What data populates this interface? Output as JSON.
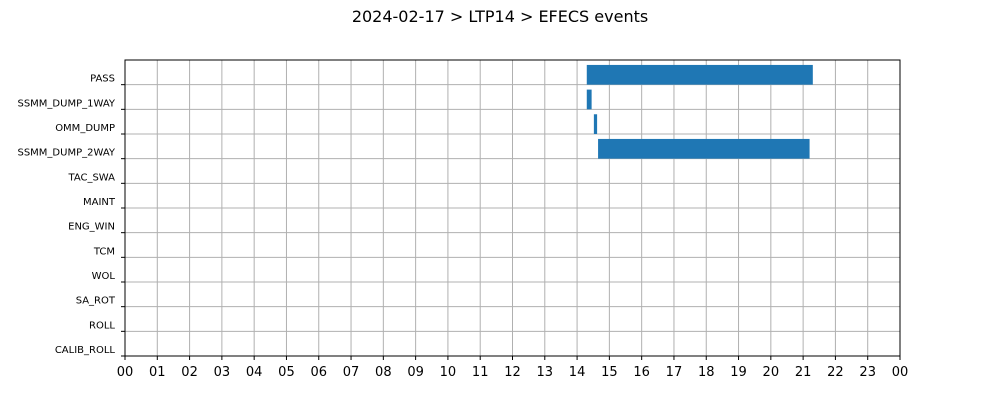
{
  "chart_data": {
    "type": "bar",
    "orientation": "horizontal-timeline",
    "title": "2024-02-17 > LTP14 > EFECS events",
    "categories": [
      "PASS",
      "SSMM_DUMP_1WAY",
      "OMM_DUMP",
      "SSMM_DUMP_2WAY",
      "TAC_SWA",
      "MAINT",
      "ENG_WIN",
      "TCM",
      "WOL",
      "SA_ROT",
      "ROLL",
      "CALIB_ROLL"
    ],
    "xlim": [
      0,
      24
    ],
    "x_ticks": [
      0,
      1,
      2,
      3,
      4,
      5,
      6,
      7,
      8,
      9,
      10,
      11,
      12,
      13,
      14,
      15,
      16,
      17,
      18,
      19,
      20,
      21,
      22,
      23,
      24
    ],
    "x_tick_labels": [
      "00",
      "01",
      "02",
      "03",
      "04",
      "05",
      "06",
      "07",
      "08",
      "09",
      "10",
      "11",
      "12",
      "13",
      "14",
      "15",
      "16",
      "17",
      "18",
      "19",
      "20",
      "21",
      "22",
      "23",
      "00"
    ],
    "grid": true,
    "bar_color": "#1f77b4",
    "events": [
      {
        "category": "PASS",
        "start": 14.3,
        "end": 21.3
      },
      {
        "category": "SSMM_DUMP_1WAY",
        "start": 14.3,
        "end": 14.45
      },
      {
        "category": "OMM_DUMP",
        "start": 14.52,
        "end": 14.62
      },
      {
        "category": "SSMM_DUMP_2WAY",
        "start": 14.65,
        "end": 21.2
      }
    ]
  }
}
